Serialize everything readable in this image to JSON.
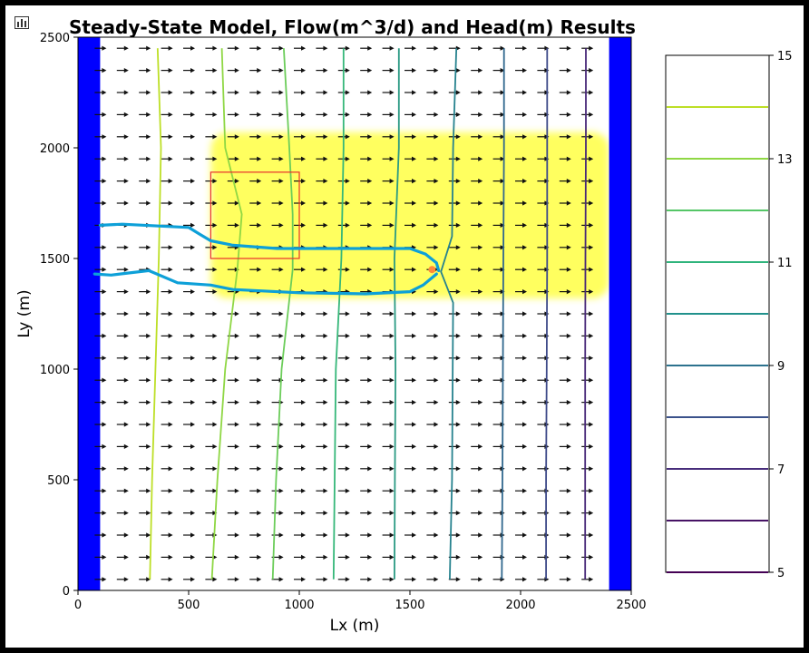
{
  "chart_data": {
    "type": "contour",
    "title": "Steady-State Model, Flow(m^3/d) and Head(m) Results",
    "xlabel": "Lx (m)",
    "ylabel": "Ly (m)",
    "xlim": [
      0,
      2500
    ],
    "ylim": [
      0,
      2500
    ],
    "x_ticks": [
      "0",
      "500",
      "1000",
      "1500",
      "2000",
      "2500"
    ],
    "y_ticks": [
      "0",
      "500",
      "1000",
      "1500",
      "2000",
      "2500"
    ],
    "x_tick_values": [
      0,
      500,
      1000,
      1500,
      2000,
      2500
    ],
    "y_tick_values": [
      0,
      500,
      1000,
      1500,
      2000,
      2500
    ],
    "boundaries": {
      "left_x": [
        0,
        100
      ],
      "right_x": [
        2400,
        2500
      ],
      "color": "#0000ff"
    },
    "quiver": {
      "x_start": 100,
      "x_step": 100,
      "x_count": 23,
      "y_start": 50,
      "y_step": 100,
      "y_count": 25,
      "direction": "east",
      "color": "#111111"
    },
    "contours": [
      {
        "level": 14,
        "color": "#bddf26",
        "points": [
          [
            360,
            2450
          ],
          [
            375,
            2000
          ],
          [
            365,
            1500
          ],
          [
            350,
            1000
          ],
          [
            335,
            500
          ],
          [
            325,
            50
          ]
        ]
      },
      {
        "level": 13,
        "color": "#8fd744",
        "points": [
          [
            650,
            2450
          ],
          [
            665,
            2000
          ],
          [
            740,
            1700
          ],
          [
            720,
            1450
          ],
          [
            665,
            1000
          ],
          [
            630,
            500
          ],
          [
            605,
            50
          ]
        ]
      },
      {
        "level": 12,
        "color": "#6ccd5a",
        "points": [
          [
            930,
            2450
          ],
          [
            955,
            2000
          ],
          [
            970,
            1700
          ],
          [
            970,
            1450
          ],
          [
            920,
            1000
          ],
          [
            895,
            500
          ],
          [
            880,
            50
          ]
        ]
      },
      {
        "level": 11,
        "color": "#35b779",
        "points": [
          [
            1200,
            2450
          ],
          [
            1200,
            2000
          ],
          [
            1190,
            1500
          ],
          [
            1165,
            1000
          ],
          [
            1160,
            500
          ],
          [
            1155,
            50
          ]
        ]
      },
      {
        "level": 10,
        "color": "#2a9a83",
        "points": [
          [
            1450,
            2450
          ],
          [
            1450,
            2000
          ],
          [
            1430,
            1500
          ],
          [
            1435,
            1000
          ],
          [
            1432,
            500
          ],
          [
            1430,
            50
          ]
        ]
      },
      {
        "level": 9,
        "color": "#26828e",
        "points": [
          [
            1710,
            2450
          ],
          [
            1695,
            2000
          ],
          [
            1690,
            1600
          ],
          [
            1640,
            1440
          ],
          [
            1695,
            1300
          ],
          [
            1690,
            500
          ],
          [
            1680,
            50
          ]
        ]
      },
      {
        "level": 8,
        "color": "#31688e",
        "points": [
          [
            1925,
            2450
          ],
          [
            1925,
            2000
          ],
          [
            1922,
            1500
          ],
          [
            1920,
            1000
          ],
          [
            1918,
            500
          ],
          [
            1915,
            50
          ]
        ]
      },
      {
        "level": 7,
        "color": "#3e4a89",
        "points": [
          [
            2120,
            2450
          ],
          [
            2120,
            2000
          ],
          [
            2120,
            1500
          ],
          [
            2118,
            1000
          ],
          [
            2115,
            500
          ],
          [
            2115,
            50
          ]
        ]
      },
      {
        "level": 6,
        "color": "#482878",
        "points": [
          [
            2295,
            2450
          ],
          [
            2295,
            2000
          ],
          [
            2293,
            1500
          ],
          [
            2292,
            1000
          ],
          [
            2292,
            500
          ],
          [
            2292,
            50
          ]
        ]
      }
    ],
    "river": {
      "color": "#0da0d8",
      "upper": [
        [
          100,
          1650
        ],
        [
          200,
          1655
        ],
        [
          500,
          1640
        ],
        [
          550,
          1610
        ],
        [
          600,
          1580
        ],
        [
          700,
          1560
        ],
        [
          900,
          1545
        ],
        [
          1200,
          1545
        ],
        [
          1500,
          1545
        ],
        [
          1570,
          1520
        ],
        [
          1620,
          1480
        ],
        [
          1630,
          1445
        ]
      ],
      "lower": [
        [
          75,
          1430
        ],
        [
          150,
          1425
        ],
        [
          320,
          1445
        ],
        [
          450,
          1390
        ],
        [
          600,
          1380
        ],
        [
          700,
          1360
        ],
        [
          1000,
          1345
        ],
        [
          1300,
          1340
        ],
        [
          1500,
          1350
        ],
        [
          1560,
          1380
        ],
        [
          1620,
          1430
        ]
      ]
    },
    "highlight_region": {
      "x": [
        600,
        2400
      ],
      "y": [
        1320,
        2070
      ],
      "color": "#ffff2a"
    },
    "red_rectangle": {
      "x": [
        600,
        1000
      ],
      "y": [
        1500,
        1890
      ],
      "color": "#e8302c"
    },
    "well": {
      "x": 1600,
      "y": 1450,
      "color": "#ff8a3c"
    },
    "colorbar": {
      "min": 5,
      "max": 15,
      "tick_labels": [
        "15",
        "13",
        "11",
        "9",
        "7",
        "5"
      ],
      "tick_values": [
        15,
        13,
        11,
        9,
        7,
        5
      ],
      "lines": [
        {
          "value": 14,
          "color": "#bddf26"
        },
        {
          "value": 13,
          "color": "#8fd744"
        },
        {
          "value": 12,
          "color": "#55c667"
        },
        {
          "value": 11,
          "color": "#2fb47c"
        },
        {
          "value": 10,
          "color": "#21918c"
        },
        {
          "value": 9,
          "color": "#2c728e"
        },
        {
          "value": 8,
          "color": "#3b528b"
        },
        {
          "value": 7,
          "color": "#472d7b"
        },
        {
          "value": 6,
          "color": "#471365"
        },
        {
          "value": 5,
          "color": "#440154"
        }
      ]
    }
  }
}
